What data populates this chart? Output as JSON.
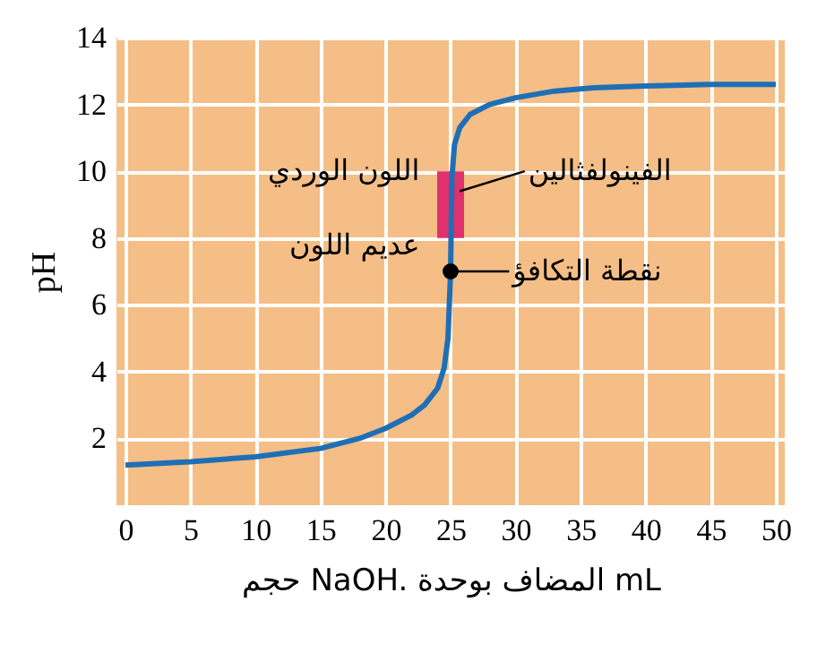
{
  "chart_data": {
    "type": "line",
    "xlabel": "حجم NaOH. المضاف بوحدة mL",
    "ylabel": "pH",
    "xlim": [
      0,
      50
    ],
    "ylim": [
      0,
      14
    ],
    "xticks": [
      0,
      5,
      10,
      15,
      20,
      25,
      30,
      35,
      40,
      45,
      50
    ],
    "yticks": [
      2,
      4,
      6,
      8,
      10,
      12,
      14
    ],
    "grid": true,
    "series": [
      {
        "type": "bar",
        "color": "#e0306e",
        "x": [
          25
        ],
        "base": [
          8
        ],
        "values": [
          2
        ]
      },
      {
        "color": "#1f6fb5",
        "x": [
          0,
          5,
          10,
          15,
          18,
          20,
          22,
          23,
          24,
          24.5,
          24.8,
          24.9,
          25,
          25.05,
          25.1,
          25.3,
          25.7,
          26.5,
          28,
          30,
          33,
          36,
          40,
          45,
          50
        ],
        "values": [
          1.2,
          1.3,
          1.45,
          1.7,
          2.0,
          2.3,
          2.7,
          3.0,
          3.5,
          4.1,
          5.0,
          6.0,
          7.0,
          8.5,
          9.8,
          10.8,
          11.3,
          11.7,
          12.0,
          12.2,
          12.4,
          12.5,
          12.55,
          12.6,
          12.6
        ]
      },
      {
        "type": "scatter",
        "color": "#000000",
        "marker": "circle",
        "x": [
          25
        ],
        "values": [
          7
        ]
      }
    ],
    "annotations": [
      {
        "text": "الفينولفثالين",
        "x": 25.7,
        "y": 9.4
      },
      {
        "text": "نقطة التكافؤ",
        "x": 25,
        "y": 7
      },
      {
        "text": "اللون الوردي",
        "x": 24,
        "y": 10
      },
      {
        "text": "عديم اللون",
        "x": 24,
        "y": 8
      }
    ]
  }
}
